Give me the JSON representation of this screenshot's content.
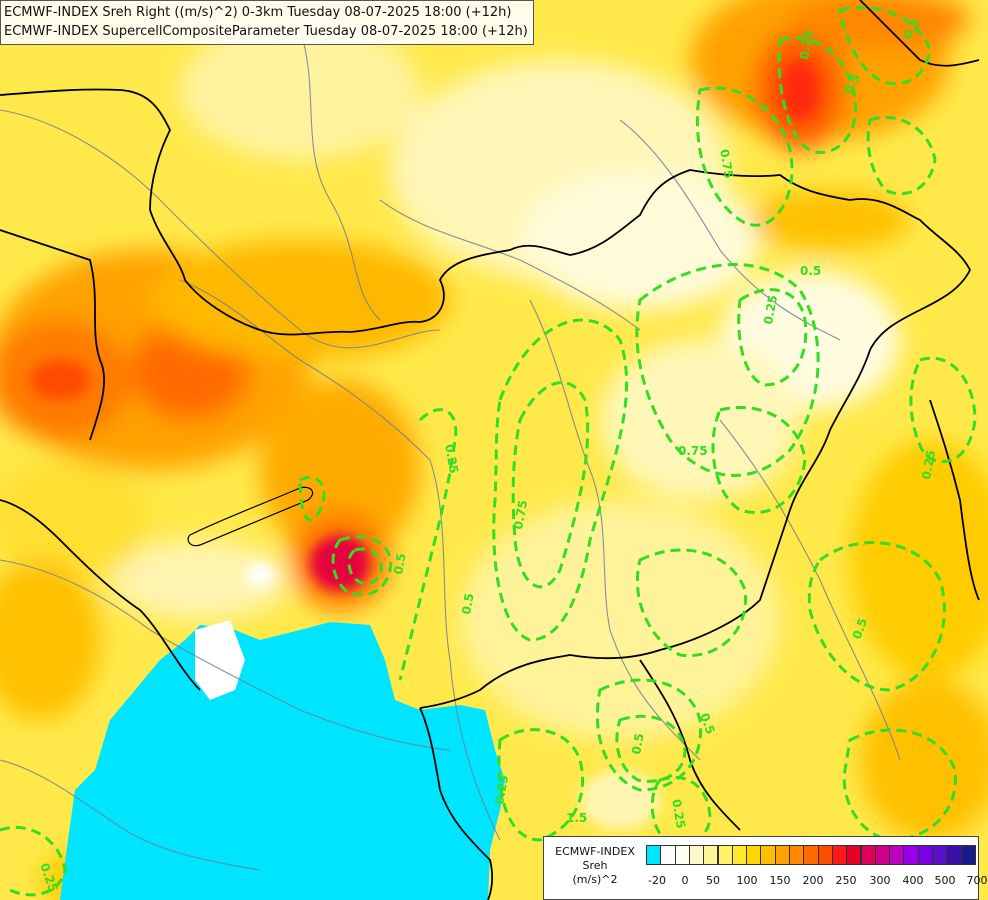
{
  "header": {
    "line1": "ECMWF-INDEX Sreh Right ((m/s)^2) 0-3km Tuesday 08-07-2025 18:00 (+12h)",
    "line2": "ECMWF-INDEX SupercellCompositeParameter Tuesday 08-07-2025 18:00 (+12h)"
  },
  "legend": {
    "title": [
      "ECMWF-INDEX",
      "Sreh",
      "(m/s)^2"
    ],
    "colors": [
      "#00e5ff",
      "#ffffff",
      "#fffff0",
      "#fff7c8",
      "#fff59a",
      "#fff06a",
      "#ffe830",
      "#ffd500",
      "#ffbf00",
      "#ffa200",
      "#ff8800",
      "#ff6a00",
      "#ff4c00",
      "#ff1a1a",
      "#e60026",
      "#e0005a",
      "#d0008a",
      "#c000c0",
      "#9a00e6",
      "#7a00e6",
      "#5a10c8",
      "#3a10a8",
      "#1a1a8a"
    ],
    "ticks": [
      "-20",
      "0",
      "50",
      "100",
      "150",
      "200",
      "250",
      "300",
      "400",
      "500",
      "700"
    ]
  },
  "contour_labels": [
    "0.25",
    "0.5",
    "0.5",
    "0.75",
    "0.25",
    "0.5",
    "0.5",
    "0.75",
    "0.25",
    "0.5",
    "0.75",
    "0.5",
    "0.5",
    "1.5",
    "0.25",
    "0.25",
    "0.25",
    "0.5",
    "0.25"
  ],
  "colors": {
    "contour": "#33dd22",
    "border": "#000000",
    "river": "#6f7f93"
  }
}
